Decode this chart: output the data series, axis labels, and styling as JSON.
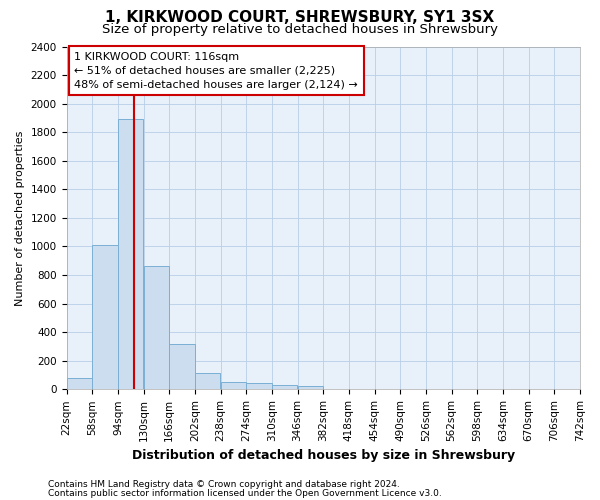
{
  "title": "1, KIRKWOOD COURT, SHREWSBURY, SY1 3SX",
  "subtitle": "Size of property relative to detached houses in Shrewsbury",
  "xlabel": "Distribution of detached houses by size in Shrewsbury",
  "ylabel": "Number of detached properties",
  "footnote1": "Contains HM Land Registry data © Crown copyright and database right 2024.",
  "footnote2": "Contains public sector information licensed under the Open Government Licence v3.0.",
  "bar_color": "#ccddf0",
  "bar_edge_color": "#7aafd4",
  "grid_color": "#b8cfe8",
  "bg_color": "#e8f0fa",
  "annotation_box_color": "#ffffff",
  "annotation_box_edge": "#cc0000",
  "vline_color": "#cc0000",
  "bins_left": [
    22,
    58,
    94,
    130,
    166,
    202,
    238,
    274,
    310,
    346,
    382,
    418,
    454,
    490,
    526,
    562,
    598,
    634,
    670,
    706
  ],
  "bin_width": 36,
  "values": [
    80,
    1010,
    1890,
    860,
    320,
    115,
    50,
    42,
    28,
    20,
    0,
    0,
    0,
    0,
    0,
    0,
    0,
    0,
    0,
    0
  ],
  "property_size": 116,
  "annotation_line1": "1 KIRKWOOD COURT: 116sqm",
  "annotation_line2": "← 51% of detached houses are smaller (2,225)",
  "annotation_line3": "48% of semi-detached houses are larger (2,124) →",
  "ylim": [
    0,
    2400
  ],
  "xlim_left": 22,
  "xlim_right": 742,
  "yticks": [
    0,
    200,
    400,
    600,
    800,
    1000,
    1200,
    1400,
    1600,
    1800,
    2000,
    2200,
    2400
  ],
  "xtick_labels": [
    "22sqm",
    "58sqm",
    "94sqm",
    "130sqm",
    "166sqm",
    "202sqm",
    "238sqm",
    "274sqm",
    "310sqm",
    "346sqm",
    "382sqm",
    "418sqm",
    "454sqm",
    "490sqm",
    "526sqm",
    "562sqm",
    "598sqm",
    "634sqm",
    "670sqm",
    "706sqm",
    "742sqm"
  ],
  "title_fontsize": 11,
  "subtitle_fontsize": 9.5,
  "xlabel_fontsize": 9,
  "ylabel_fontsize": 8,
  "tick_fontsize": 7.5,
  "annotation_fontsize": 8,
  "footnote_fontsize": 6.5
}
